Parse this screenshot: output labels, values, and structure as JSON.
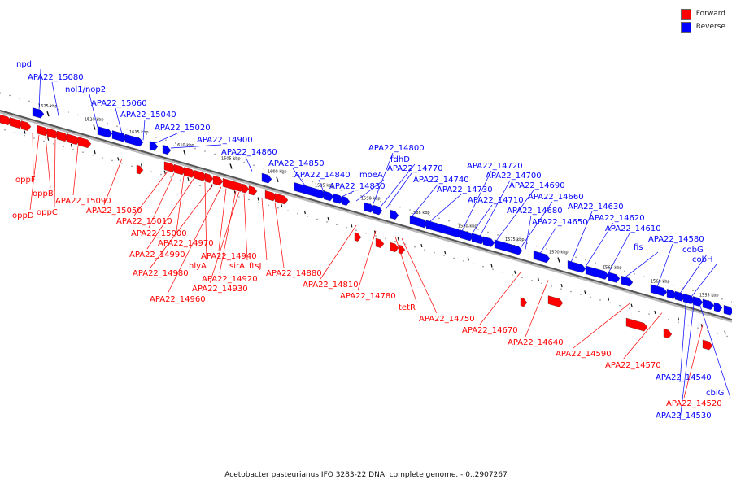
{
  "legend": [
    {
      "label": "Forward",
      "color": "#ff0000"
    },
    {
      "label": "Reverse",
      "color": "#0000ff"
    }
  ],
  "caption": "Acetobacter pasteurianus IFO 3283-22 DNA, complete genome. - 0..2907267",
  "colors": {
    "forward": "#ff0000",
    "reverse": "#0000ff",
    "backbone": "#555555"
  },
  "ticks": [
    "1625 kbp",
    "1620 kbp",
    "1615 kbp",
    "1610 kbp",
    "1605 kbp",
    "1600 kbp",
    "1595 kbp",
    "1590 kbp",
    "1585 kbp",
    "1580 kbp",
    "1575 kbp",
    "1570 kbp",
    "1565 kbp",
    "1560 kbp",
    "1555 kbp"
  ],
  "reverse_labels": [
    "npd",
    "APA22_15080",
    "nol1/nop2",
    "APA22_15060",
    "APA22_15040",
    "APA22_15020",
    "APA22_14900",
    "APA22_14860",
    "APA22_14850",
    "APA22_14840",
    "APA22_14830",
    "moeA",
    "APA22_14800",
    "fdhD",
    "APA22_14770",
    "APA22_14740",
    "APA22_14730",
    "APA22_14720",
    "APA22_14700",
    "APA22_14710",
    "APA22_14690",
    "APA22_14660",
    "APA22_14680",
    "APA22_14650",
    "APA22_14630",
    "APA22_14620",
    "APA22_14610",
    "fis",
    "APA22_14580",
    "cobG",
    "cobH",
    "APA22_14540",
    "cbiG",
    "APA22_14530"
  ],
  "forward_labels": [
    "oppF",
    "oppB",
    "oppD",
    "oppC",
    "APA22_15090",
    "APA22_15050",
    "APA22_15010",
    "APA22_15000",
    "APA22_14970",
    "APA22_14990",
    "hlyA",
    "APA22_14980",
    "APA22_14940",
    "sirA",
    "ftsJ",
    "APA22_14920",
    "APA22_14930",
    "APA22_14960",
    "APA22_14880",
    "APA22_14810",
    "APA22_14780",
    "tetR",
    "APA22_14750",
    "APA22_14670",
    "APA22_14640",
    "APA22_14590",
    "APA22_14570",
    "APA22_14520"
  ]
}
